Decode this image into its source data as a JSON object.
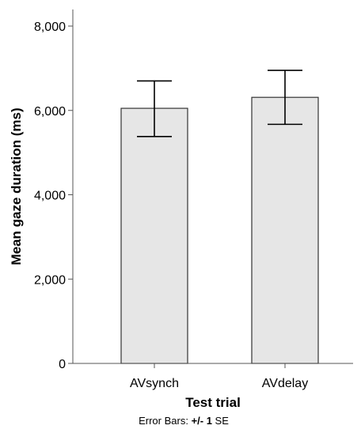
{
  "chart_data": {
    "type": "bar",
    "categories": [
      "AVsynch",
      "AVdelay"
    ],
    "values": [
      6050,
      6310
    ],
    "error_bars": {
      "type": "+/- 1 SE",
      "lower": [
        5380,
        5670
      ],
      "upper": [
        6700,
        6950
      ]
    },
    "xlabel": "Test trial",
    "ylabel": "Mean gaze duration (ms)",
    "ylim": [
      0,
      8000
    ],
    "yticks": [
      0,
      2000,
      4000,
      6000,
      8000
    ],
    "ytick_labels": [
      "0",
      "2,000",
      "4,000",
      "6,000",
      "8,000"
    ],
    "note_prefix": "Error Bars: ",
    "note_value": "+/- 1",
    "note_suffix": " SE",
    "grid": false,
    "bar_color": "#e6e6e6",
    "bar_stroke": "#333333",
    "axis_color": "#555555"
  }
}
